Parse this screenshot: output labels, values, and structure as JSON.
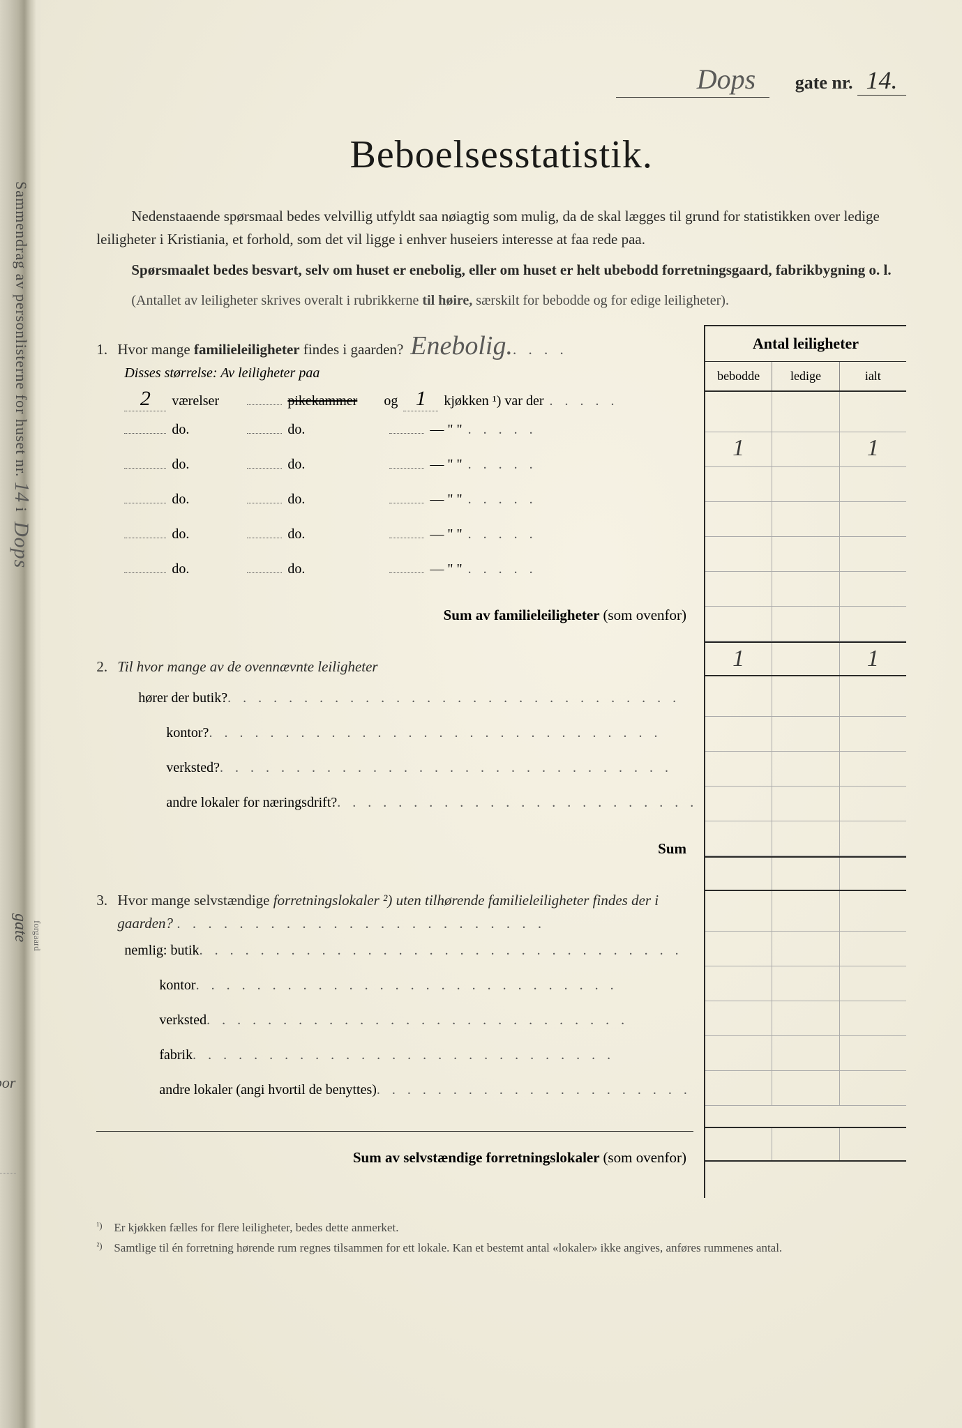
{
  "header": {
    "street_handwritten": "Dops",
    "gate_label": "gate nr.",
    "gate_number": "14."
  },
  "title": "Beboelsesstatistik.",
  "intro": {
    "p1_pre": "Nedenstaaende spørsmaal bedes velvillig utfyldt saa nøiagtig som mulig, da de skal lægges til grund for statistikken over ledige leiligheter i Kristiania, et forhold, som det vil ligge i enhver huseiers interesse at faa rede paa.",
    "p2": "Spørsmaalet bedes besvart, selv om huset er enebolig, eller om huset er helt ubebodd forretningsgaard, fabrikbygning o. l.",
    "p3_pre": "(Antallet av leiligheter skrives overalt i rubrikkerne ",
    "p3_bold": "til høire,",
    "p3_post": " særskilt for bebodde og for edige leiligheter)."
  },
  "table": {
    "title": "Antal leiligheter",
    "cols": [
      "bebodde",
      "ledige",
      "ialt"
    ]
  },
  "q1": {
    "num": "1.",
    "text_pre": "Hvor mange ",
    "text_bold": "familieleiligheter",
    "text_post": " findes i gaarden?",
    "answer_handwritten": "Enebolig.",
    "sub": "Disses størrelse:  Av leiligheter paa",
    "rows": [
      {
        "v": "2",
        "a": "værelser",
        "b": "pikekammer",
        "b_struck": true,
        "c": "og",
        "k": "1",
        "d": "kjøkken ¹) var der",
        "bebodde": "1",
        "ledige": "",
        "ialt": "1"
      },
      {
        "v": "",
        "a": "do.",
        "b": "do.",
        "c": "",
        "k": "",
        "d": "—        \"    \"",
        "bebodde": "",
        "ledige": "",
        "ialt": ""
      },
      {
        "v": "",
        "a": "do.",
        "b": "do.",
        "c": "",
        "k": "",
        "d": "—        \"    \"",
        "bebodde": "",
        "ledige": "",
        "ialt": ""
      },
      {
        "v": "",
        "a": "do.",
        "b": "do.",
        "c": "",
        "k": "",
        "d": "—        \"    \"",
        "bebodde": "",
        "ledige": "",
        "ialt": ""
      },
      {
        "v": "",
        "a": "do.",
        "b": "do.",
        "c": "",
        "k": "",
        "d": "—        \"    \"",
        "bebodde": "",
        "ledige": "",
        "ialt": ""
      },
      {
        "v": "",
        "a": "do.",
        "b": "do.",
        "c": "",
        "k": "",
        "d": "—        \"    \"",
        "bebodde": "",
        "ledige": "",
        "ialt": ""
      }
    ],
    "sum_label": "Sum av familieleiligheter",
    "sum_paren": "(som ovenfor)",
    "sum_vals": {
      "bebodde": "1",
      "ledige": "",
      "ialt": "1"
    }
  },
  "q2": {
    "num": "2.",
    "text": "Til hvor mange av de ovennævnte leiligheter",
    "rows": [
      "hører der butik?",
      "kontor?",
      "verksted?",
      "andre lokaler for næringsdrift?"
    ],
    "sum_label": "Sum"
  },
  "q3": {
    "num": "3.",
    "text_a": "Hvor mange selvstændige ",
    "text_it": "forretningslokaler ²)",
    "text_b": " uten tilhørende familieleiligheter findes der i gaarden?",
    "nemlig": "nemlig:",
    "rows": [
      "butik",
      "kontor",
      "verksted",
      "fabrik",
      "andre lokaler (angi hvortil de benyttes)"
    ],
    "sum_label": "Sum av selvstændige forretningslokaler",
    "sum_paren": "(som ovenfor)"
  },
  "footnotes": [
    {
      "n": "¹)",
      "t": "Er kjøkken fælles for flere leiligheter, bedes dette anmerket."
    },
    {
      "n": "²)",
      "t": "Samtlige til én forretning hørende rum regnes tilsammen for ett lokale.  Kan et bestemt antal «lokaler» ikke angives, anføres rummenes antal."
    }
  ],
  "margin": {
    "vertical_main": "Sammendrag av personlisterne for huset nr.",
    "vertical_house_nr": "14",
    "vertical_i": "i",
    "vertical_script": "Dops",
    "vertical_gate": "gate",
    "vertical_small": "forgaard",
    "und_bor": "und bor",
    "script2": "u"
  }
}
